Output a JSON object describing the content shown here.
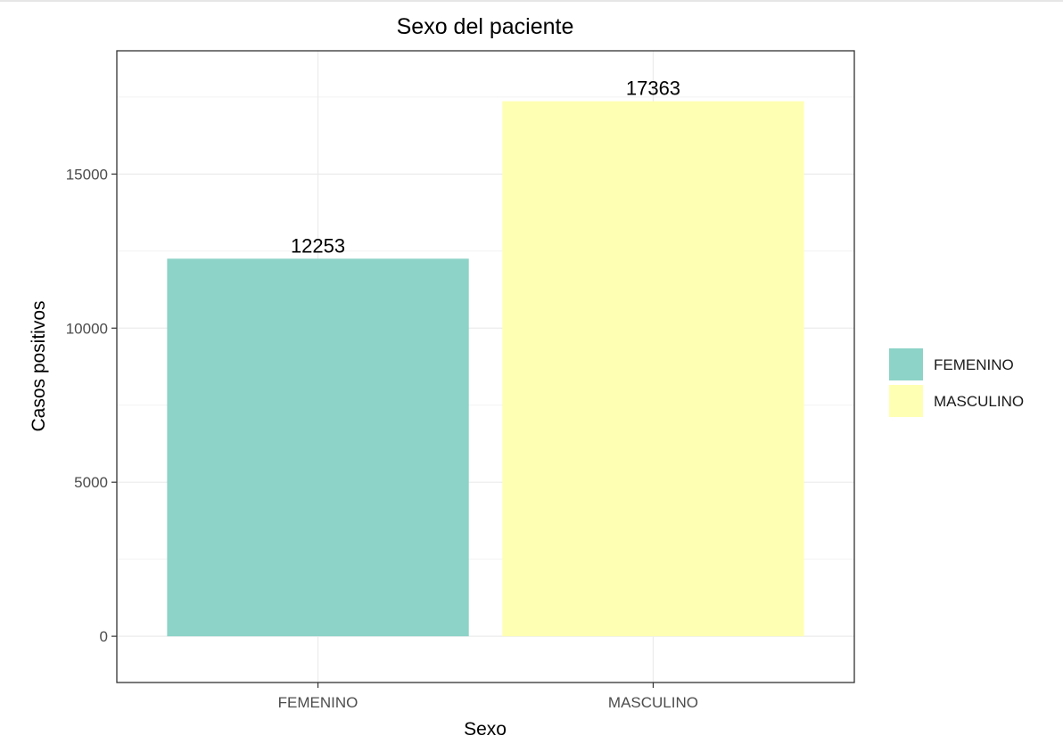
{
  "chart_data": {
    "type": "bar",
    "title": "Sexo del paciente",
    "xlabel": "Sexo",
    "ylabel": "Casos positivos",
    "categories": [
      "FEMENINO",
      "MASCULINO"
    ],
    "values": [
      12253,
      17363
    ],
    "data_labels": [
      "12253",
      "17363"
    ],
    "colors": [
      "#8dd3c7",
      "#ffffb3"
    ],
    "ylim": [
      -1500,
      19000
    ],
    "yticks": [
      0,
      5000,
      10000,
      15000
    ],
    "ytick_labels": [
      "0",
      "5000",
      "10000",
      "15000"
    ],
    "grid": true,
    "legend": {
      "placement": "right",
      "entries": [
        "FEMENINO",
        "MASCULINO"
      ]
    }
  }
}
